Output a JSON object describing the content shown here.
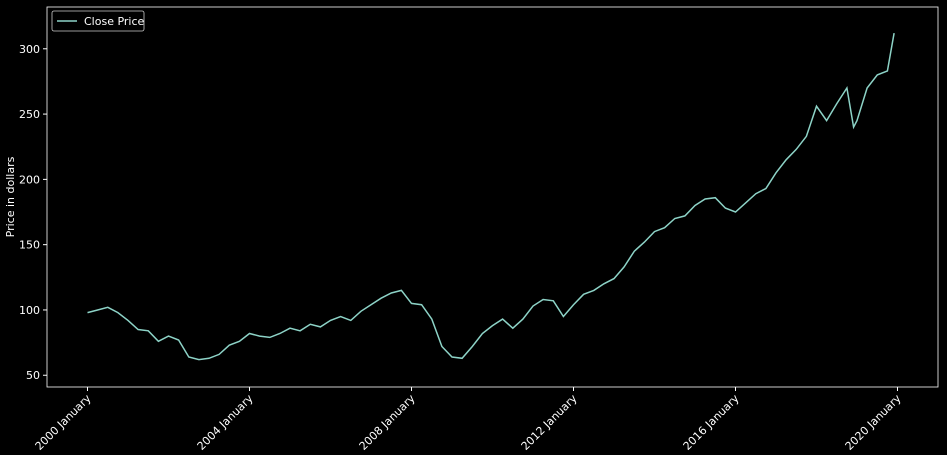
{
  "chart_data": {
    "type": "line",
    "ylabel": "Price in dollars",
    "legend": "upper left",
    "x": [
      "2000-01",
      "2000-04",
      "2000-07",
      "2000-10",
      "2001-01",
      "2001-04",
      "2001-07",
      "2001-10",
      "2002-01",
      "2002-04",
      "2002-07",
      "2002-10",
      "2003-01",
      "2003-04",
      "2003-07",
      "2003-10",
      "2004-01",
      "2004-04",
      "2004-07",
      "2004-10",
      "2005-01",
      "2005-04",
      "2005-07",
      "2005-10",
      "2006-01",
      "2006-04",
      "2006-07",
      "2006-10",
      "2007-01",
      "2007-04",
      "2007-07",
      "2007-10",
      "2008-01",
      "2008-04",
      "2008-07",
      "2008-10",
      "2009-01",
      "2009-04",
      "2009-07",
      "2009-10",
      "2010-01",
      "2010-04",
      "2010-07",
      "2010-10",
      "2011-01",
      "2011-04",
      "2011-07",
      "2011-10",
      "2012-01",
      "2012-04",
      "2012-07",
      "2012-10",
      "2013-01",
      "2013-04",
      "2013-07",
      "2013-10",
      "2014-01",
      "2014-04",
      "2014-07",
      "2014-10",
      "2015-01",
      "2015-04",
      "2015-07",
      "2015-10",
      "2016-01",
      "2016-04",
      "2016-07",
      "2016-10",
      "2017-01",
      "2017-04",
      "2017-07",
      "2017-10",
      "2018-01",
      "2018-04",
      "2018-07",
      "2018-10",
      "2018-12",
      "2019-01",
      "2019-04",
      "2019-07",
      "2019-10",
      "2019-12"
    ],
    "series": [
      {
        "name": "Close Price",
        "color": "#8dd3c7",
        "values": [
          98,
          100,
          102,
          98,
          92,
          85,
          84,
          76,
          80,
          77,
          64,
          62,
          63,
          66,
          73,
          76,
          82,
          80,
          79,
          82,
          86,
          84,
          89,
          87,
          92,
          95,
          92,
          99,
          104,
          109,
          113,
          115,
          105,
          104,
          93,
          72,
          64,
          63,
          72,
          82,
          88,
          93,
          86,
          93,
          103,
          108,
          107,
          95,
          104,
          112,
          115,
          120,
          124,
          133,
          145,
          152,
          160,
          163,
          170,
          172,
          180,
          185,
          186,
          178,
          175,
          182,
          189,
          193,
          205,
          215,
          223,
          233,
          256,
          245,
          258,
          270,
          240,
          245,
          270,
          280,
          283,
          312
        ]
      }
    ],
    "xlim": [
      "1999-01",
      "2021-01"
    ],
    "xticks": [
      {
        "value": "2000-01",
        "label": "2000 January"
      },
      {
        "value": "2004-01",
        "label": "2004 January"
      },
      {
        "value": "2008-01",
        "label": "2008 January"
      },
      {
        "value": "2012-01",
        "label": "2012 January"
      },
      {
        "value": "2016-01",
        "label": "2016 January"
      },
      {
        "value": "2020-01",
        "label": "2020 January"
      }
    ],
    "ylim": [
      41,
      332
    ],
    "yticks": [
      50,
      100,
      150,
      200,
      250,
      300
    ]
  }
}
